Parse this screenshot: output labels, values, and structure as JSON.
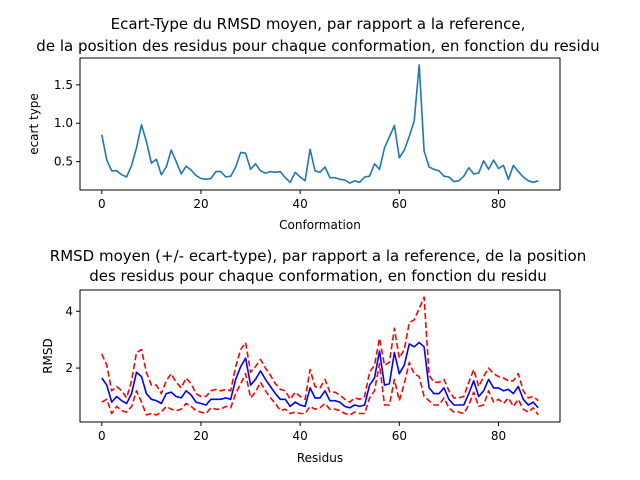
{
  "chart_data": [
    {
      "type": "line",
      "title_lines": [
        "Ecart-Type du RMSD moyen, par rapport a la reference,",
        "de la position des residus pour chaque conformation, en fonction du residu"
      ],
      "xlabel": "Conformation",
      "ylabel": "ecart type",
      "xlim": [
        -4.4,
        92.4
      ],
      "ylim": [
        0.13,
        1.85
      ],
      "xticks": [
        0,
        20,
        40,
        60,
        80
      ],
      "yticks": [
        0.5,
        1.0,
        1.5
      ],
      "ytick_labels": [
        "0.5",
        "1.0",
        "1.5"
      ],
      "series": [
        {
          "color": "#1f77b4",
          "values": [
            0.85,
            0.52,
            0.38,
            0.38,
            0.33,
            0.3,
            0.45,
            0.68,
            0.98,
            0.76,
            0.48,
            0.53,
            0.33,
            0.43,
            0.65,
            0.5,
            0.34,
            0.44,
            0.39,
            0.32,
            0.28,
            0.27,
            0.28,
            0.37,
            0.37,
            0.3,
            0.31,
            0.43,
            0.62,
            0.61,
            0.4,
            0.47,
            0.38,
            0.35,
            0.37,
            0.36,
            0.37,
            0.29,
            0.23,
            0.36,
            0.3,
            0.25,
            0.66,
            0.38,
            0.36,
            0.43,
            0.29,
            0.29,
            0.27,
            0.26,
            0.22,
            0.25,
            0.23,
            0.3,
            0.31,
            0.47,
            0.4,
            0.68,
            0.82,
            0.97,
            0.55,
            0.65,
            0.83,
            1.03,
            1.76,
            0.64,
            0.43,
            0.4,
            0.38,
            0.31,
            0.3,
            0.24,
            0.25,
            0.31,
            0.42,
            0.34,
            0.35,
            0.51,
            0.4,
            0.52,
            0.41,
            0.45,
            0.27,
            0.45,
            0.37,
            0.3,
            0.25,
            0.23,
            0.25
          ]
        }
      ]
    },
    {
      "type": "line",
      "title_lines": [
        "RMSD moyen (+/- ecart-type), par rapport a la reference, de la position",
        "des residus pour chaque conformation, en fonction du residu"
      ],
      "xlabel": "Residus",
      "ylabel": "RMSD",
      "xlim": [
        -4.4,
        92.4
      ],
      "ylim": [
        0.1,
        4.75
      ],
      "xticks": [
        0,
        20,
        40,
        60,
        80
      ],
      "yticks": [
        2,
        4
      ],
      "ytick_labels": [
        "2",
        "4"
      ],
      "series": [
        {
          "style": "solid",
          "color": "#0000ff",
          "values": [
            1.65,
            1.4,
            0.8,
            1.0,
            0.85,
            0.75,
            1.1,
            1.85,
            1.7,
            1.1,
            0.9,
            0.85,
            0.75,
            1.1,
            1.15,
            1.0,
            0.95,
            1.2,
            1.05,
            0.8,
            0.75,
            0.7,
            0.9,
            0.9,
            0.9,
            0.95,
            0.9,
            1.6,
            2.05,
            2.35,
            1.4,
            1.6,
            1.9,
            1.6,
            1.35,
            1.1,
            0.9,
            0.9,
            0.65,
            0.8,
            0.7,
            0.65,
            1.3,
            0.95,
            0.95,
            1.2,
            0.85,
            0.85,
            0.8,
            0.65,
            0.6,
            0.7,
            0.65,
            0.7,
            1.4,
            1.65,
            2.6,
            1.4,
            1.45,
            2.55,
            1.8,
            2.1,
            2.85,
            2.75,
            2.9,
            2.75,
            1.3,
            1.1,
            1.1,
            1.3,
            0.9,
            0.7,
            0.7,
            0.7,
            1.1,
            1.55,
            1.0,
            1.2,
            1.6,
            1.3,
            1.3,
            1.2,
            1.25,
            1.1,
            1.35,
            0.9,
            0.7,
            0.8,
            0.6
          ]
        },
        {
          "style": "dashed",
          "color": "#ff0000",
          "values": [
            2.5,
            2.1,
            1.2,
            1.35,
            1.2,
            0.95,
            1.55,
            2.55,
            2.65,
            1.85,
            1.4,
            1.4,
            1.1,
            1.55,
            1.8,
            1.5,
            1.3,
            1.65,
            1.45,
            1.1,
            1.0,
            1.0,
            1.2,
            1.25,
            1.2,
            1.25,
            1.2,
            2.05,
            2.65,
            2.9,
            1.85,
            2.05,
            2.3,
            2.0,
            1.75,
            1.45,
            1.25,
            1.2,
            0.9,
            1.15,
            1.0,
            0.9,
            1.95,
            1.35,
            1.3,
            1.6,
            1.15,
            1.15,
            1.05,
            0.9,
            0.8,
            0.95,
            0.9,
            1.0,
            1.85,
            2.1,
            3.05,
            2.1,
            2.2,
            3.4,
            2.35,
            2.65,
            3.6,
            3.7,
            4.1,
            4.5,
            1.75,
            1.5,
            1.5,
            1.6,
            1.2,
            0.95,
            0.95,
            1.0,
            1.5,
            1.95,
            1.35,
            1.7,
            2.0,
            1.8,
            1.7,
            1.65,
            1.55,
            1.55,
            1.8,
            1.2,
            0.95,
            1.0,
            0.85
          ]
        },
        {
          "style": "dashed",
          "color": "#ff0000",
          "values": [
            0.8,
            0.9,
            0.4,
            0.65,
            0.5,
            0.45,
            0.65,
            1.2,
            0.8,
            0.35,
            0.4,
            0.35,
            0.45,
            0.65,
            0.55,
            0.5,
            0.55,
            0.75,
            0.65,
            0.5,
            0.45,
            0.4,
            0.6,
            0.55,
            0.55,
            0.65,
            0.6,
            1.1,
            1.45,
            1.8,
            0.95,
            1.15,
            1.5,
            1.2,
            0.95,
            0.75,
            0.5,
            0.55,
            0.4,
            0.45,
            0.4,
            0.4,
            0.65,
            0.55,
            0.6,
            0.75,
            0.55,
            0.55,
            0.5,
            0.4,
            0.35,
            0.45,
            0.4,
            0.4,
            0.95,
            1.2,
            2.15,
            0.7,
            0.7,
            1.6,
            0.85,
            1.45,
            2.2,
            1.8,
            1.7,
            1.0,
            0.85,
            0.7,
            0.7,
            0.95,
            0.6,
            0.45,
            0.45,
            0.4,
            0.7,
            1.15,
            0.65,
            0.7,
            1.2,
            0.8,
            0.9,
            0.75,
            0.95,
            0.65,
            0.9,
            0.55,
            0.45,
            0.6,
            0.35
          ]
        }
      ]
    }
  ]
}
